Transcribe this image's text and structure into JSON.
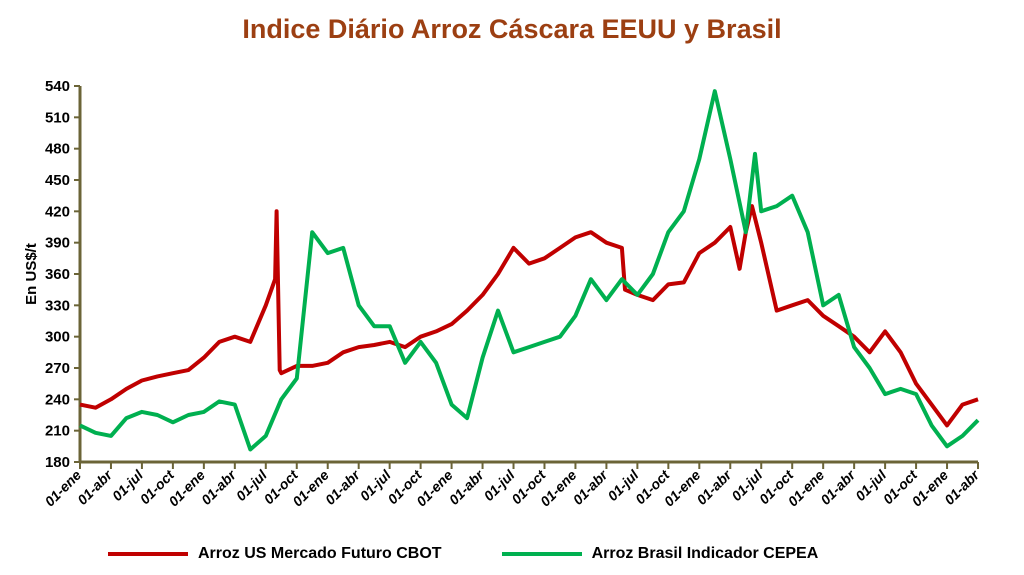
{
  "chart_data": {
    "type": "line",
    "title": "Indice Diário Arroz Cáscara EEUU y Brasil",
    "ylabel": "En US$/t",
    "xlabel": "",
    "ylim": [
      180,
      540
    ],
    "yticks": [
      180,
      210,
      240,
      270,
      300,
      330,
      360,
      390,
      420,
      450,
      480,
      510,
      540
    ],
    "xlim": [
      0,
      29
    ],
    "x_unit": "quarter index from first 01-ene",
    "xtick_labels": [
      "01-ene",
      "01-abr",
      "01-jul",
      "01-oct",
      "01-ene",
      "01-abr",
      "01-jul",
      "01-oct",
      "01-ene",
      "01-abr",
      "01-jul",
      "01-oct",
      "01-ene",
      "01-abr",
      "01-jul",
      "01-oct",
      "01-ene",
      "01-abr",
      "01-jul",
      "01-oct",
      "01-ene",
      "01-abr",
      "01-jul",
      "01-oct",
      "01-ene",
      "01-abr",
      "01-jul",
      "01-oct",
      "01-ene",
      "01-abr"
    ],
    "grid": false,
    "legend": "bottom",
    "series": [
      {
        "name": "Arroz US Mercado Futuro CBOT",
        "color": "#c00000",
        "x": [
          0,
          0.5,
          1,
          1.5,
          2,
          2.5,
          3,
          3.5,
          4,
          4.5,
          5,
          5.5,
          6,
          6.3,
          6.35,
          6.45,
          6.5,
          7,
          7.5,
          8,
          8.5,
          9,
          9.5,
          10,
          10.5,
          11,
          11.5,
          12,
          12.5,
          13,
          13.5,
          14,
          14.5,
          15,
          15.5,
          16,
          16.5,
          17,
          17.5,
          17.6,
          18,
          18.5,
          19,
          19.5,
          20,
          20.5,
          21,
          21.3,
          21.5,
          21.7,
          22,
          22.5,
          23,
          23.5,
          24,
          24.5,
          25,
          25.5,
          26,
          26.5,
          27,
          27.5,
          28,
          28.5,
          29
        ],
        "y": [
          235,
          232,
          240,
          250,
          258,
          262,
          265,
          268,
          280,
          295,
          300,
          295,
          330,
          355,
          420,
          268,
          265,
          272,
          272,
          275,
          285,
          290,
          292,
          295,
          290,
          300,
          305,
          312,
          325,
          340,
          360,
          385,
          370,
          375,
          385,
          395,
          400,
          390,
          385,
          345,
          340,
          335,
          350,
          352,
          380,
          390,
          405,
          365,
          400,
          425,
          390,
          325,
          330,
          335,
          320,
          310,
          300,
          285,
          305,
          285,
          255,
          235,
          215,
          235,
          240
        ]
      },
      {
        "name": "Arroz Brasil Indicador CEPEA",
        "color": "#00b050",
        "x": [
          0,
          0.5,
          1,
          1.5,
          2,
          2.5,
          3,
          3.5,
          4,
          4.5,
          5,
          5.5,
          6,
          6.5,
          7,
          7.5,
          8,
          8.5,
          9,
          9.5,
          10,
          10.5,
          11,
          11.5,
          12,
          12.5,
          13,
          13.5,
          14,
          14.5,
          15,
          15.5,
          16,
          16.5,
          17,
          17.5,
          18,
          18.5,
          19,
          19.5,
          20,
          20.5,
          21,
          21.5,
          21.8,
          22,
          22.5,
          23,
          23.5,
          24,
          24.5,
          25,
          25.5,
          26,
          26.5,
          27,
          27.5,
          28,
          28.5,
          29
        ],
        "y": [
          215,
          208,
          205,
          222,
          228,
          225,
          218,
          225,
          228,
          238,
          235,
          192,
          205,
          240,
          260,
          400,
          380,
          385,
          330,
          310,
          310,
          275,
          295,
          275,
          235,
          222,
          280,
          325,
          285,
          290,
          295,
          300,
          320,
          355,
          335,
          355,
          340,
          360,
          400,
          420,
          470,
          535,
          470,
          400,
          475,
          420,
          425,
          435,
          400,
          330,
          340,
          290,
          270,
          245,
          250,
          245,
          215,
          195,
          205,
          220
        ]
      }
    ]
  }
}
